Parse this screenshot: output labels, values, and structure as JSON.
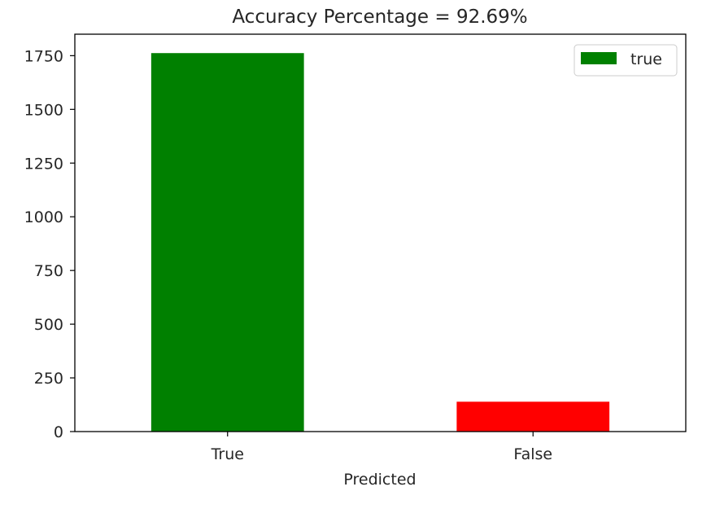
{
  "chart_data": {
    "type": "bar",
    "title": "Accuracy Percentage = 92.69%",
    "xlabel": "Predicted",
    "ylabel": "",
    "categories": [
      "True",
      "False"
    ],
    "values": [
      1762,
      139
    ],
    "bar_colors": [
      "#008000",
      "#ff0000"
    ],
    "ylim": [
      0,
      1850
    ],
    "yticks": [
      0,
      250,
      500,
      750,
      1000,
      1250,
      1500,
      1750
    ],
    "grid": false,
    "legend": {
      "placement": "top-right",
      "entries": [
        {
          "label": "true",
          "color": "#008000"
        }
      ]
    }
  }
}
